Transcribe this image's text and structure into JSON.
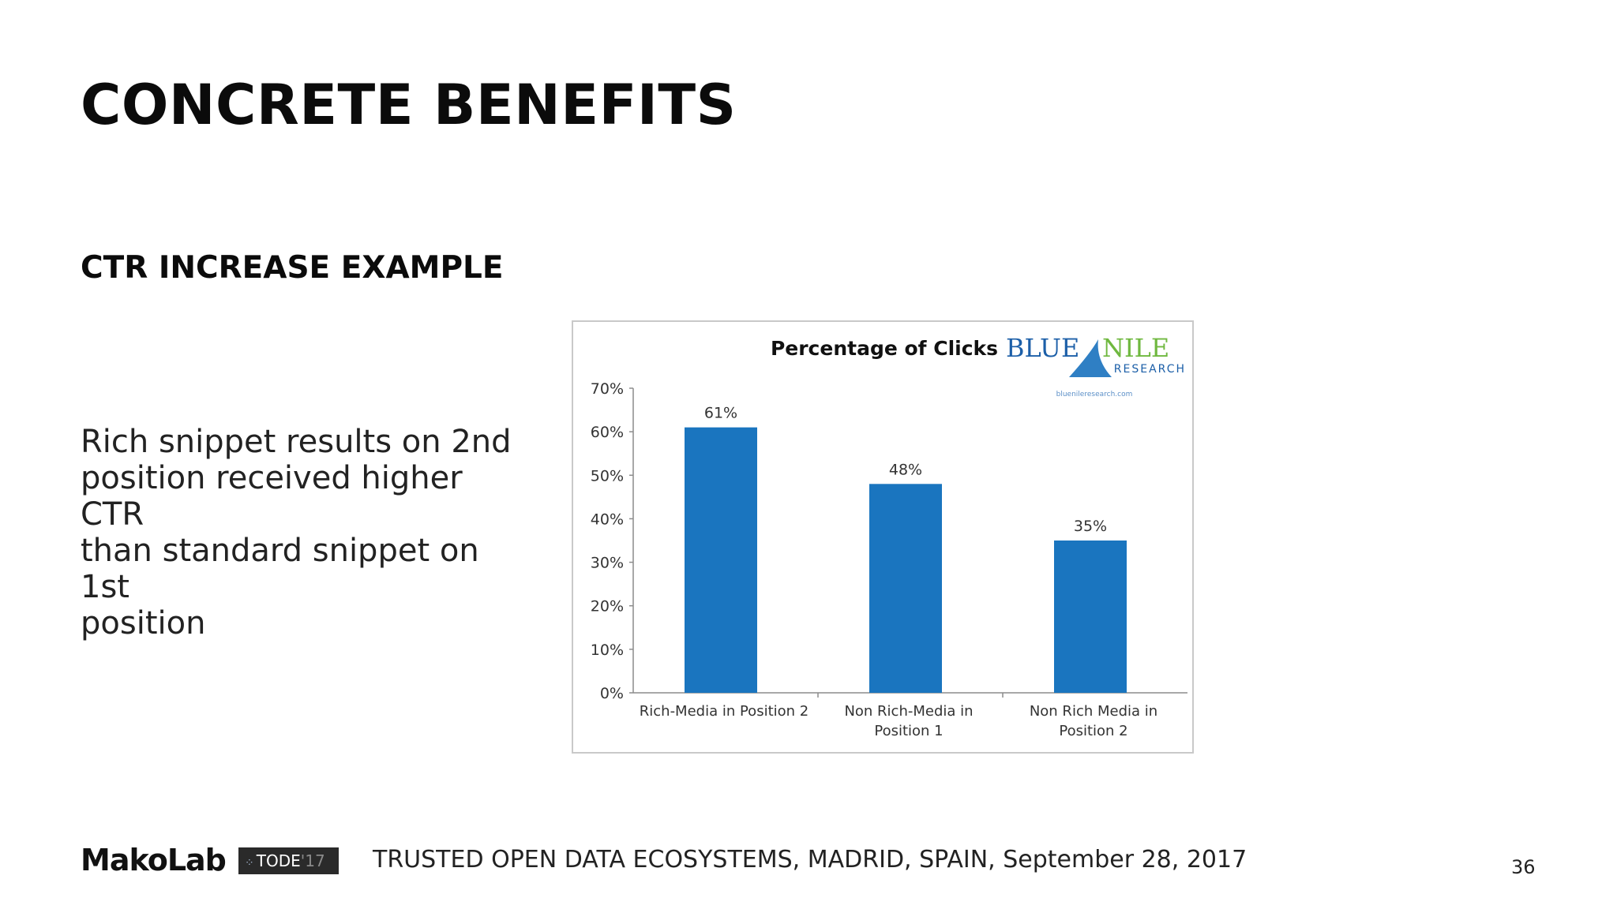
{
  "slide": {
    "title": "CONCRETE BENEFITS",
    "subtitle": "CTR INCREASE EXAMPLE",
    "body_lines": [
      "Rich snippet results on 2nd",
      "position received higher CTR",
      "than standard snippet on 1st",
      "position"
    ]
  },
  "chart_logo": {
    "line1_left": "BLUE",
    "line1_right": "NILE",
    "line2": "RESEARCH",
    "url": "bluenileresearch.com",
    "colors": {
      "blue": "#1c5fa8",
      "green": "#6fb83f"
    }
  },
  "chart_data": {
    "type": "bar",
    "title": "Percentage of Clicks",
    "categories": [
      [
        "Rich-Media in Position 2"
      ],
      [
        "Non Rich-Media in",
        "Position 1"
      ],
      [
        "Non Rich Media  in",
        "Position 2"
      ]
    ],
    "values": [
      61,
      48,
      35
    ],
    "data_labels": [
      "61%",
      "48%",
      "35%"
    ],
    "y_ticks": [
      "0%",
      "10%",
      "20%",
      "30%",
      "40%",
      "50%",
      "60%",
      "70%"
    ],
    "ylim": [
      0,
      70
    ],
    "bar_color": "#1a75bf",
    "grid": false,
    "legend": "none"
  },
  "footer": {
    "logo": "MakoLab",
    "badge": {
      "dots": "⁘",
      "name": "TODE",
      "year": "'17"
    },
    "text": "TRUSTED OPEN DATA ECOSYSTEMS, MADRID, SPAIN, September 28, 2017",
    "page_number": "36"
  }
}
